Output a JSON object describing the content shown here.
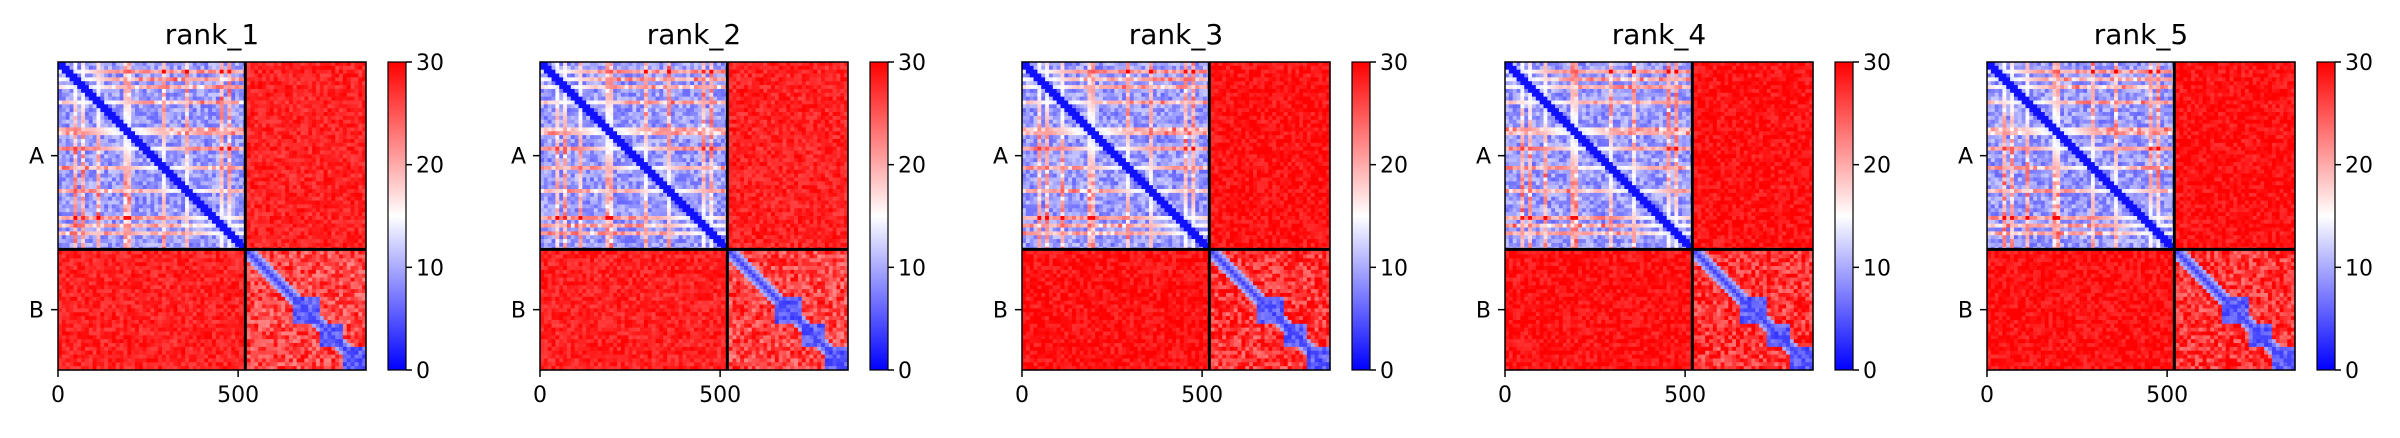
{
  "chart_data": [
    {
      "type": "heatmap",
      "title": "rank_1",
      "x_ticks": [
        "0",
        "500"
      ],
      "x_tick_values": [
        0,
        500
      ],
      "y_ticks": [
        "A",
        "B"
      ],
      "xlim": [
        0,
        855
      ],
      "ylim": [
        0,
        855
      ],
      "chain_boundary": 520,
      "colorbar": {
        "ticks": [
          "0",
          "10",
          "20",
          "30"
        ],
        "range": [
          0,
          30
        ],
        "colormap": "bwr"
      },
      "matrix_blocks": [
        {
          "block": "A-A",
          "mean_value": 9
        },
        {
          "block": "A-B",
          "mean_value": 28
        },
        {
          "block": "B-A",
          "mean_value": 28
        },
        {
          "block": "B-B",
          "mean_value": 22
        }
      ]
    },
    {
      "type": "heatmap",
      "title": "rank_2",
      "x_ticks": [
        "0",
        "500"
      ],
      "x_tick_values": [
        0,
        500
      ],
      "y_ticks": [
        "A",
        "B"
      ],
      "xlim": [
        0,
        855
      ],
      "ylim": [
        0,
        855
      ],
      "chain_boundary": 520,
      "colorbar": {
        "ticks": [
          "0",
          "10",
          "20",
          "30"
        ],
        "range": [
          0,
          30
        ],
        "colormap": "bwr"
      },
      "matrix_blocks": [
        {
          "block": "A-A",
          "mean_value": 9
        },
        {
          "block": "A-B",
          "mean_value": 28
        },
        {
          "block": "B-A",
          "mean_value": 28
        },
        {
          "block": "B-B",
          "mean_value": 22
        }
      ]
    },
    {
      "type": "heatmap",
      "title": "rank_3",
      "x_ticks": [
        "0",
        "500"
      ],
      "x_tick_values": [
        0,
        500
      ],
      "y_ticks": [
        "A",
        "B"
      ],
      "xlim": [
        0,
        855
      ],
      "ylim": [
        0,
        855
      ],
      "chain_boundary": 520,
      "colorbar": {
        "ticks": [
          "0",
          "10",
          "20",
          "30"
        ],
        "range": [
          0,
          30
        ],
        "colormap": "bwr"
      },
      "matrix_blocks": [
        {
          "block": "A-A",
          "mean_value": 9
        },
        {
          "block": "A-B",
          "mean_value": 29
        },
        {
          "block": "B-A",
          "mean_value": 29
        },
        {
          "block": "B-B",
          "mean_value": 23
        }
      ]
    },
    {
      "type": "heatmap",
      "title": "rank_4",
      "x_ticks": [
        "0",
        "500"
      ],
      "x_tick_values": [
        0,
        500
      ],
      "y_ticks": [
        "A",
        "B"
      ],
      "xlim": [
        0,
        855
      ],
      "ylim": [
        0,
        855
      ],
      "chain_boundary": 520,
      "colorbar": {
        "ticks": [
          "0",
          "10",
          "20",
          "30"
        ],
        "range": [
          0,
          30
        ],
        "colormap": "bwr"
      },
      "matrix_blocks": [
        {
          "block": "A-A",
          "mean_value": 9
        },
        {
          "block": "A-B",
          "mean_value": 29
        },
        {
          "block": "B-A",
          "mean_value": 29
        },
        {
          "block": "B-B",
          "mean_value": 23
        }
      ]
    },
    {
      "type": "heatmap",
      "title": "rank_5",
      "x_ticks": [
        "0",
        "500"
      ],
      "x_tick_values": [
        0,
        500
      ],
      "y_ticks": [
        "A",
        "B"
      ],
      "xlim": [
        0,
        855
      ],
      "ylim": [
        0,
        855
      ],
      "chain_boundary": 520,
      "colorbar": {
        "ticks": [
          "0",
          "10",
          "20",
          "30"
        ],
        "range": [
          0,
          30
        ],
        "colormap": "bwr"
      },
      "matrix_blocks": [
        {
          "block": "A-A",
          "mean_value": 9
        },
        {
          "block": "A-B",
          "mean_value": 29
        },
        {
          "block": "B-A",
          "mean_value": 29
        },
        {
          "block": "B-B",
          "mean_value": 23
        }
      ]
    }
  ],
  "colors": {
    "low": "#0000ff",
    "mid": "#ffffff",
    "high": "#ff0000",
    "boundary": "#000000"
  }
}
